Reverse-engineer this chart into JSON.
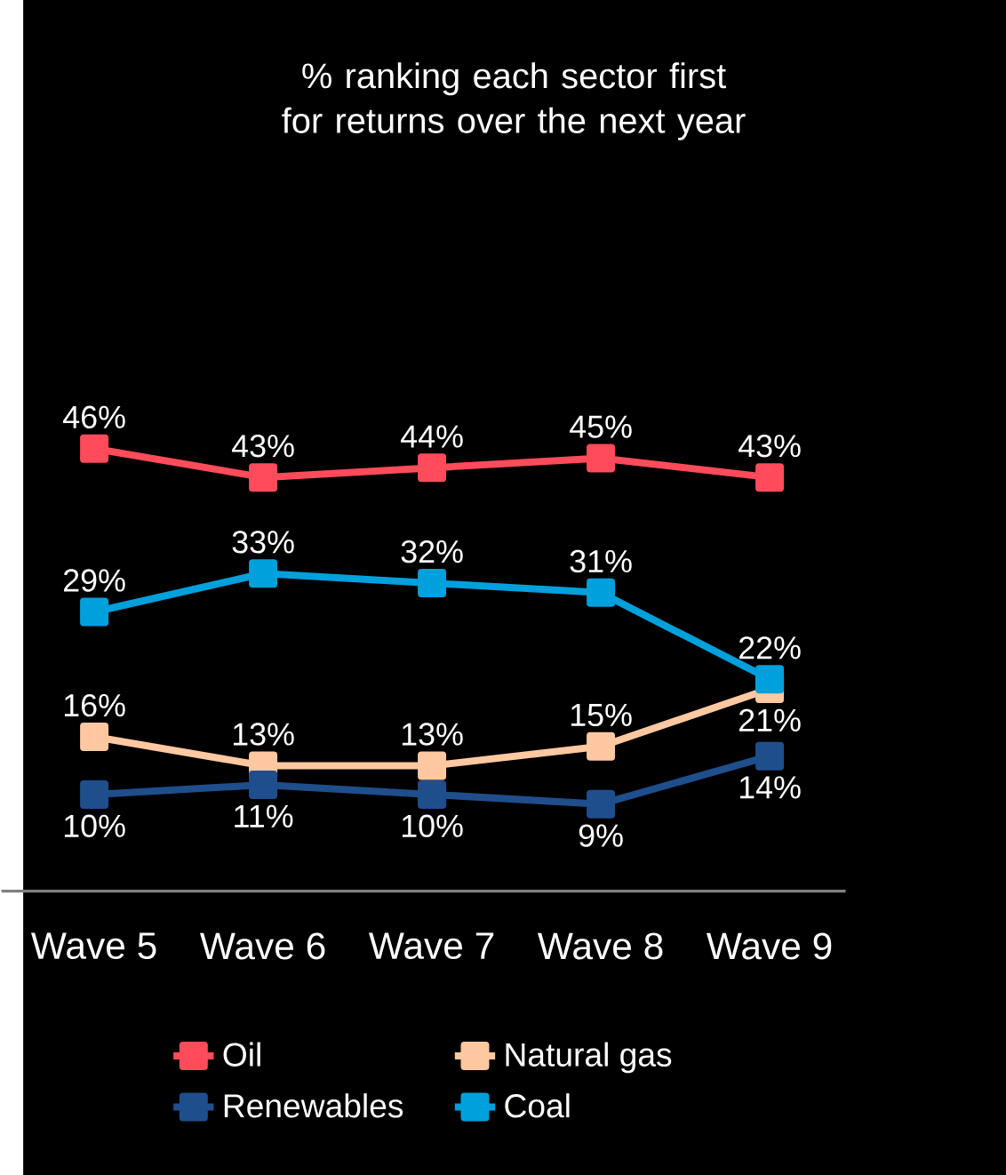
{
  "chart_data": {
    "type": "line",
    "title": "% ranking each sector first for returns over the next year",
    "categories": [
      "Wave 5",
      "Wave 6",
      "Wave 7",
      "Wave 8",
      "Wave 9"
    ],
    "series": [
      {
        "name": "Oil",
        "color": "#ff4b5a",
        "values": [
          46,
          43,
          44,
          45,
          43
        ],
        "value_labels": [
          "46%",
          "43%",
          "44%",
          "45%",
          "43%"
        ]
      },
      {
        "name": "Natural gas",
        "color": "#ffc8a0",
        "values": [
          16,
          13,
          13,
          15,
          21
        ],
        "value_labels": [
          "16%",
          "13%",
          "13%",
          "15%",
          "21%"
        ]
      },
      {
        "name": "Renewables",
        "color": "#1f4e8c",
        "values": [
          10,
          11,
          10,
          9,
          14
        ],
        "value_labels": [
          "10%",
          "11%",
          "10%",
          "9%",
          "14%"
        ]
      },
      {
        "name": "Coal",
        "color": "#00a0dc",
        "values": [
          29,
          33,
          32,
          31,
          22
        ],
        "value_labels": [
          "29%",
          "33%",
          "32%",
          "31%",
          "22%"
        ]
      }
    ],
    "legend": "bottom",
    "marker": "square",
    "line_style": "solid"
  }
}
